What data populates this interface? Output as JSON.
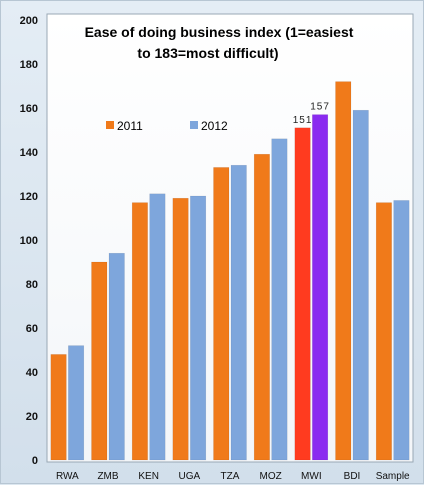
{
  "chart_data": {
    "type": "bar",
    "title_line1": "Ease of doing business index (1=easiest",
    "title_line2": "to 183=most difficult)",
    "categories": [
      "RWA",
      "ZMB",
      "KEN",
      "UGA",
      "TZA",
      "MOZ",
      "MWI",
      "BDI",
      "Sample"
    ],
    "series": [
      {
        "name": "2011",
        "color": "#f07a1a",
        "values": [
          48,
          90,
          117,
          119,
          133,
          139,
          151,
          172,
          117
        ]
      },
      {
        "name": "2012",
        "color": "#7ea6dc",
        "values": [
          52,
          94,
          121,
          120,
          134,
          146,
          157,
          159,
          118
        ]
      }
    ],
    "highlight": {
      "category": "MWI",
      "colors": [
        "#ff3b1f",
        "#8a2bf0"
      ]
    },
    "data_labels": [
      {
        "category": "MWI",
        "series": "2011",
        "text": "151"
      },
      {
        "category": "MWI",
        "series": "2012",
        "text": "157"
      }
    ],
    "yticks": [
      0,
      20,
      40,
      60,
      80,
      100,
      120,
      140,
      160,
      180,
      200
    ],
    "ylim": [
      0,
      200
    ],
    "grid": false,
    "legend_position": "upper-left"
  }
}
